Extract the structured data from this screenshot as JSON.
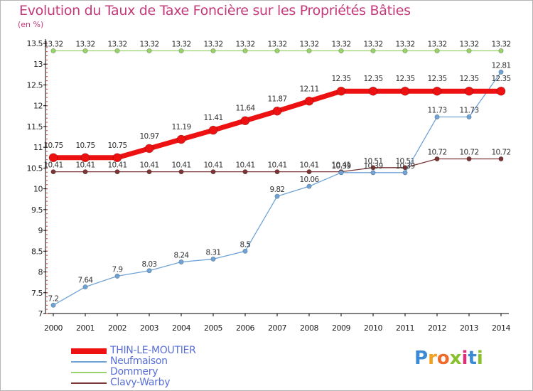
{
  "title": "Evolution du Taux de Taxe Foncière sur les Propriétés Bâties",
  "unit": "(en %)",
  "logo": {
    "text": "Proxiti",
    "letters": [
      "P",
      "r",
      "o",
      "x",
      "i",
      "t",
      "i"
    ],
    "colors": [
      "#3a8ad4",
      "#f3a01e",
      "#ef6a2b",
      "#8abf2d",
      "#d9307a",
      "#3a8ad4",
      "#8abf2d"
    ]
  },
  "chart_data": {
    "type": "line",
    "x": [
      "2000",
      "2001",
      "2002",
      "2003",
      "2004",
      "2005",
      "2006",
      "2007",
      "2008",
      "2009",
      "2010",
      "2011",
      "2012",
      "2013",
      "2014"
    ],
    "ylim": [
      7,
      13.5
    ],
    "yticks": [
      "7",
      "7.5",
      "8",
      "8.5",
      "9",
      "9.5",
      "10",
      "10.5",
      "11",
      "11.5",
      "12",
      "12.5",
      "13",
      "13.5"
    ],
    "grid": false,
    "legend_position": "bottom-left",
    "series": [
      {
        "name": "THIN-LE-MOUTIER",
        "color": "#ee1111",
        "values": [
          10.75,
          10.75,
          10.75,
          10.97,
          11.19,
          11.41,
          11.64,
          11.87,
          12.11,
          12.35,
          12.35,
          12.35,
          12.35,
          12.35,
          12.35
        ],
        "labels": [
          "10.75",
          "10.75",
          "10.75",
          "10.97",
          "11.19",
          "11.41",
          "11.64",
          "11.87",
          "12.11",
          "12.35",
          "12.35",
          "12.35",
          "12.35",
          "12.35",
          "12.35"
        ]
      },
      {
        "name": "Neufmaison",
        "color": "#6fa3d6",
        "values": [
          7.2,
          7.64,
          7.9,
          8.03,
          8.24,
          8.31,
          8.5,
          9.82,
          10.06,
          10.39,
          10.39,
          10.39,
          11.73,
          11.73,
          12.81
        ],
        "labels": [
          "7.2",
          "7.64",
          "7.9",
          "8.03",
          "8.24",
          "8.31",
          "8.5",
          "9.82",
          "10.06",
          "10.39",
          "10.39",
          "10.39",
          "11.73",
          "11.73",
          "12.81"
        ]
      },
      {
        "name": "Dommery",
        "color": "#9ad26b",
        "values": [
          13.32,
          13.32,
          13.32,
          13.32,
          13.32,
          13.32,
          13.32,
          13.32,
          13.32,
          13.32,
          13.32,
          13.32,
          13.32,
          13.32,
          13.32
        ],
        "labels": [
          "13.32",
          "13.32",
          "13.32",
          "13.32",
          "13.32",
          "13.32",
          "13.32",
          "13.32",
          "13.32",
          "13.32",
          "13.32",
          "13.32",
          "13.32",
          "13.32",
          "13.32"
        ]
      },
      {
        "name": "Clavy-Warby",
        "color": "#7b3535",
        "values": [
          10.41,
          10.41,
          10.41,
          10.41,
          10.41,
          10.41,
          10.41,
          10.41,
          10.41,
          10.41,
          10.51,
          10.51,
          10.72,
          10.72,
          10.72
        ],
        "labels": [
          "10.41",
          "10.41",
          "10.41",
          "10.41",
          "10.41",
          "10.41",
          "10.41",
          "10.41",
          "10.41",
          "10.41",
          "10.51",
          "10.51",
          "10.72",
          "10.72",
          "10.72"
        ]
      }
    ]
  }
}
